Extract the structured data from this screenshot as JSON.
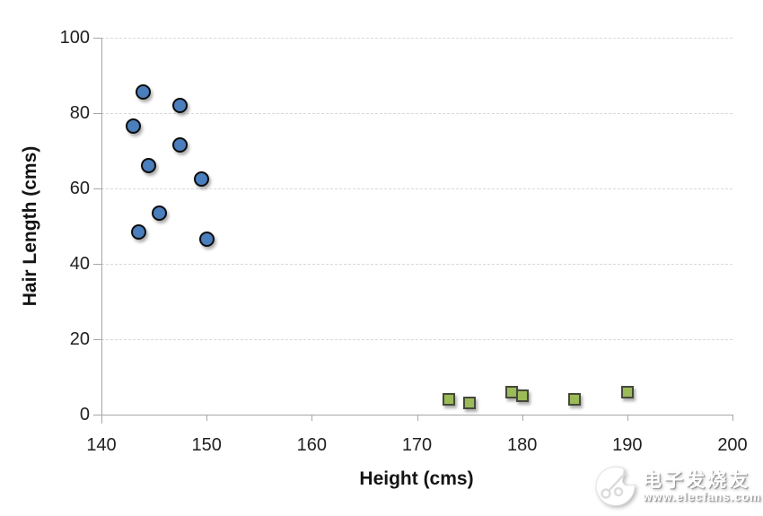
{
  "chart_data": {
    "type": "scatter",
    "title": "",
    "xlabel": "Height (cms)",
    "ylabel": "Hair Length (cms)",
    "xlim": [
      140,
      200
    ],
    "ylim": [
      0,
      100
    ],
    "xticks": [
      140,
      150,
      160,
      170,
      180,
      190,
      200
    ],
    "yticks": [
      0,
      20,
      40,
      60,
      80,
      100
    ],
    "grid": "horizontal-dashed",
    "legend": "none",
    "series": [
      {
        "name": "blue-circles",
        "marker": "circle",
        "fill": "#4A7EBC",
        "stroke": "#0D0D0D",
        "points": [
          [
            144,
            85.5
          ],
          [
            147.5,
            82
          ],
          [
            143,
            76.5
          ],
          [
            147.5,
            71.5
          ],
          [
            144.5,
            66
          ],
          [
            149.5,
            62.5
          ],
          [
            145.5,
            53.5
          ],
          [
            143.5,
            48.5
          ],
          [
            150,
            46.5
          ]
        ]
      },
      {
        "name": "green-squares",
        "marker": "square",
        "fill": "#9BBB59",
        "stroke": "#45493A",
        "points": [
          [
            173,
            4
          ],
          [
            175,
            3
          ],
          [
            179,
            6
          ],
          [
            180,
            5
          ],
          [
            185,
            4
          ],
          [
            190,
            6
          ]
        ]
      }
    ]
  },
  "watermark": {
    "brand": "电子发烧友",
    "url": "www.elecfans.com"
  }
}
